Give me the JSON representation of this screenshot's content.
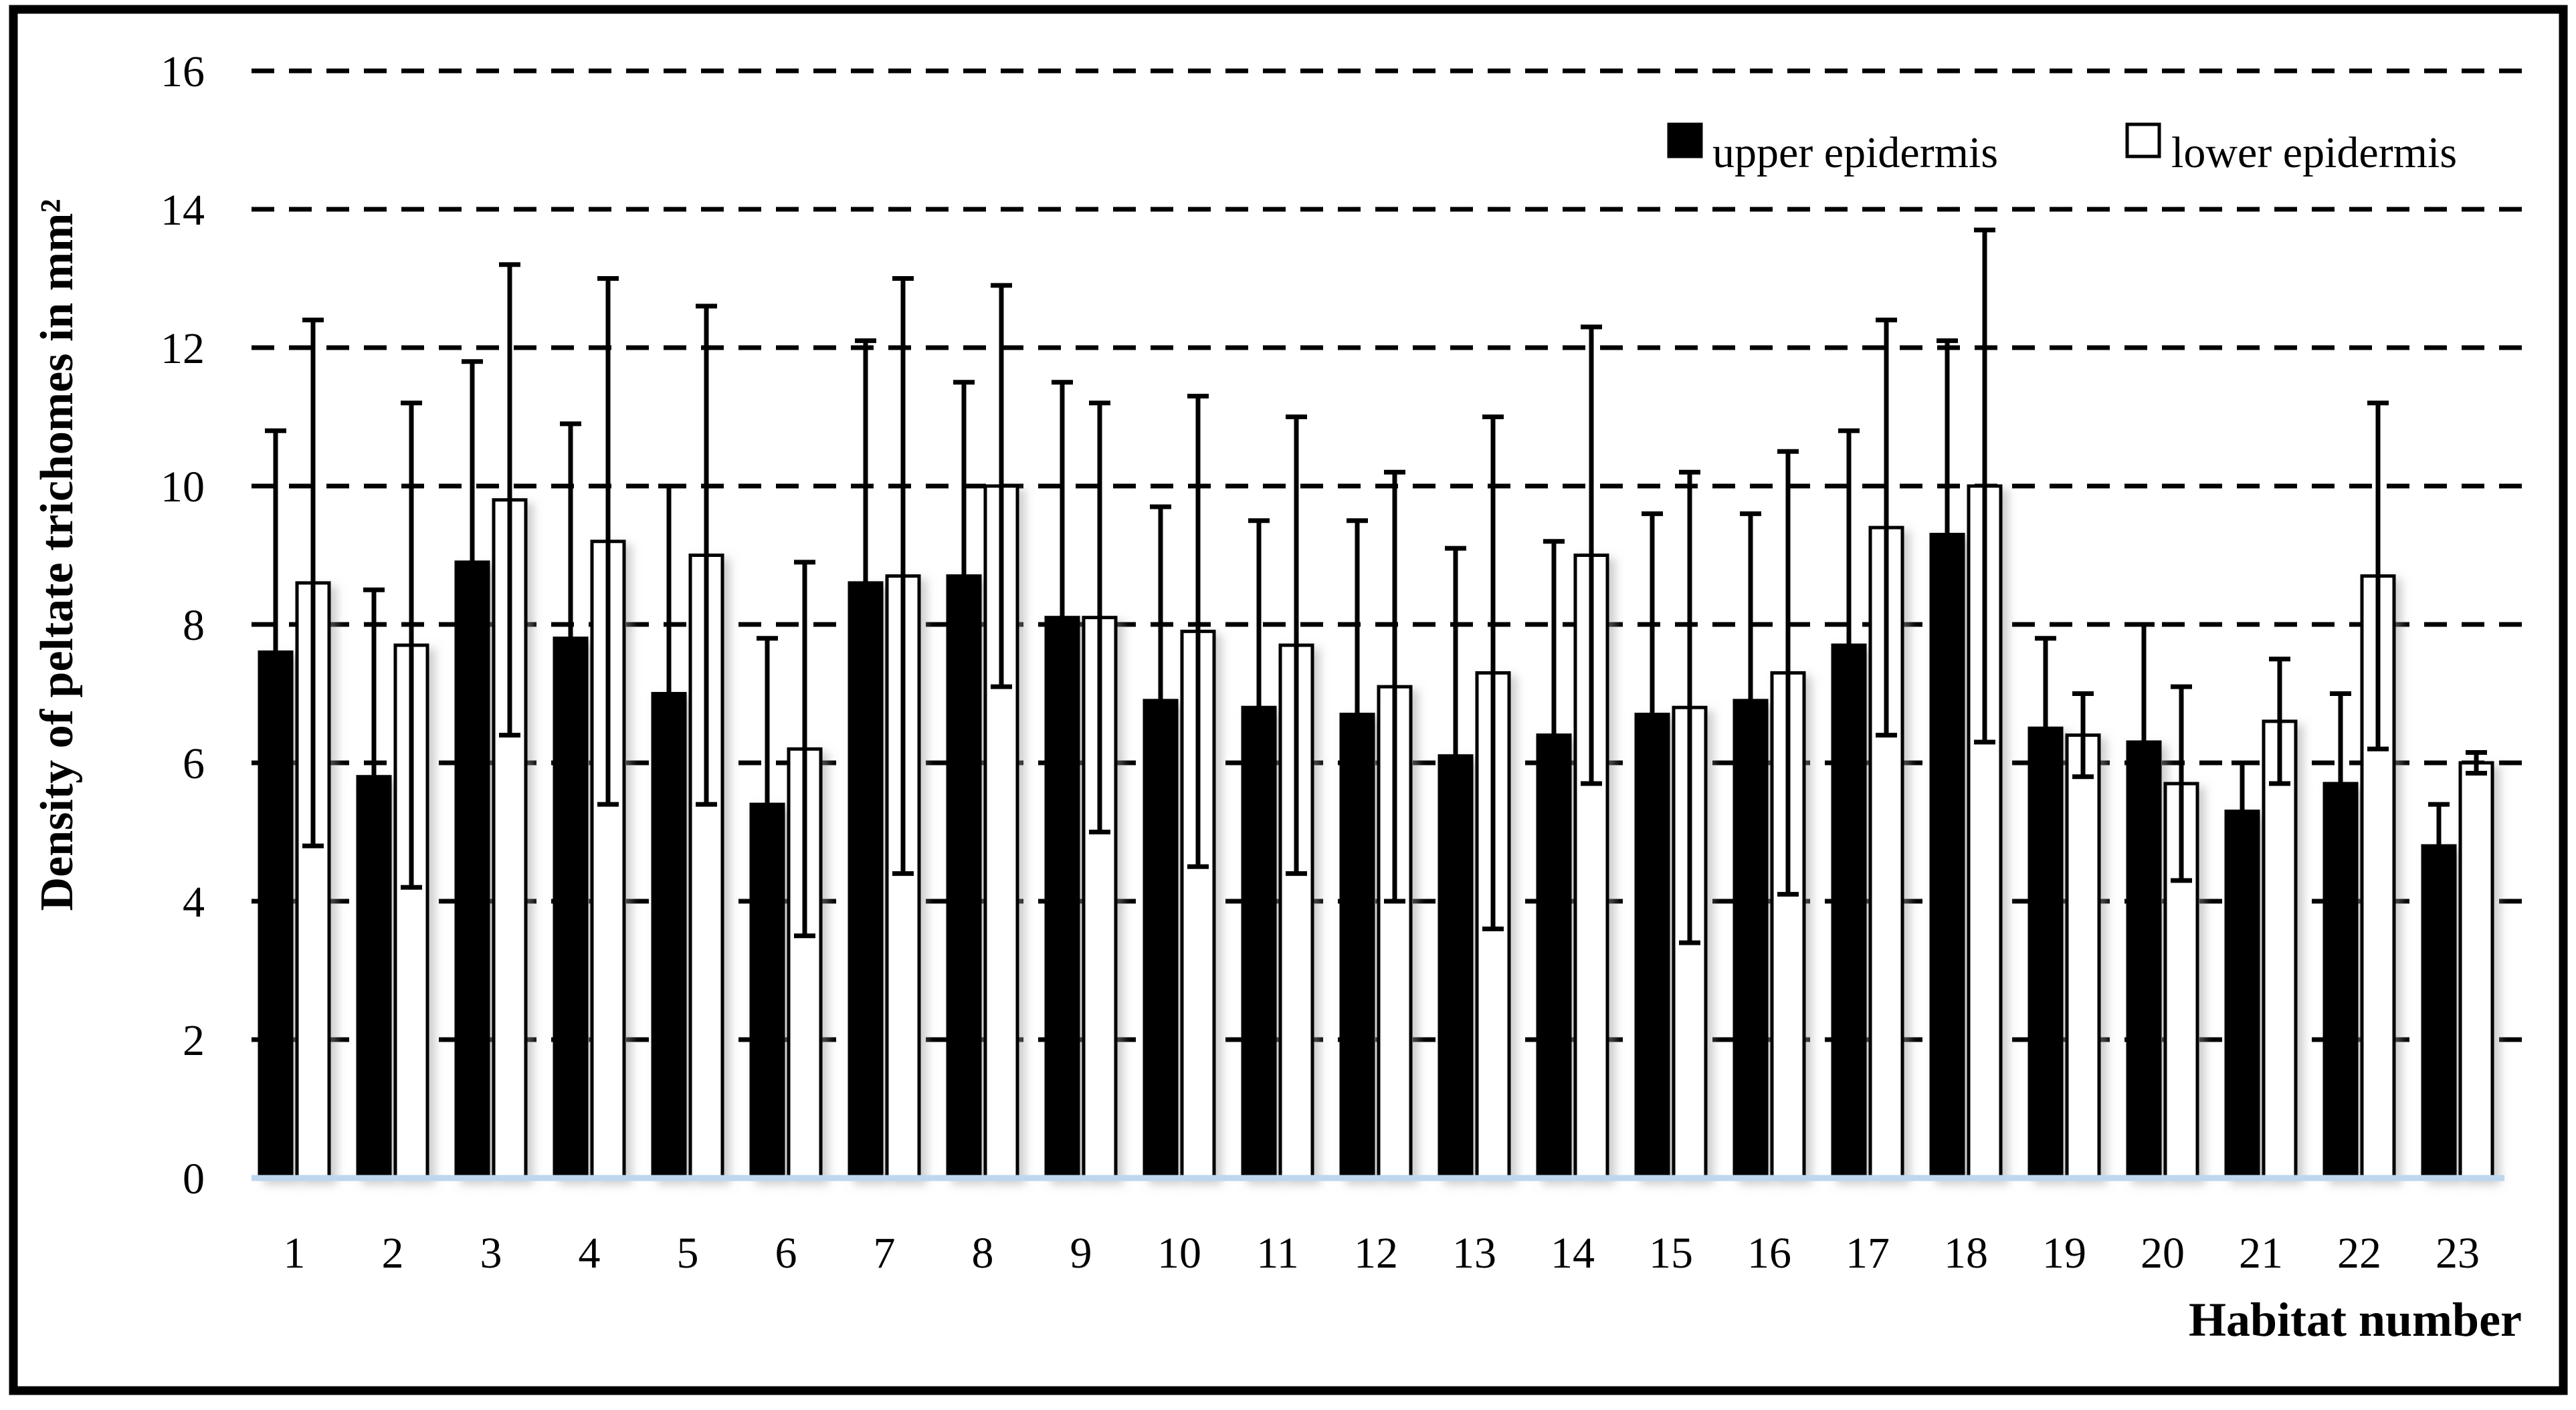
{
  "chart_data": {
    "type": "bar",
    "title": "",
    "xlabel": "Habitat number",
    "ylabel": "Density of peltate trichomes in mm²",
    "ylim": [
      0,
      16
    ],
    "yticks": [
      0,
      2,
      4,
      6,
      8,
      10,
      12,
      14,
      16
    ],
    "categories": [
      "1",
      "2",
      "3",
      "4",
      "5",
      "6",
      "7",
      "8",
      "9",
      "10",
      "11",
      "12",
      "13",
      "14",
      "15",
      "16",
      "17",
      "18",
      "19",
      "20",
      "21",
      "22",
      "23"
    ],
    "grid": "horizontal-dashed",
    "legend_position": "top-right-inside",
    "error_bars": "symmetric-with-caps",
    "colors": {
      "bar_upper_fill": "#000000",
      "bar_lower_fill": "#ffffff",
      "bar_stroke": "#000000",
      "gridline": "#000000",
      "baseline_axis": "#bdd7ee",
      "frame_border": "#000000",
      "text": "#000000"
    },
    "series": [
      {
        "key": "upper",
        "name": "upper epidermis",
        "fill": "#000000",
        "values": [
          7.6,
          5.8,
          8.9,
          7.8,
          7.0,
          5.4,
          8.6,
          8.7,
          8.1,
          6.9,
          6.8,
          6.7,
          6.1,
          6.4,
          6.7,
          6.9,
          7.7,
          9.3,
          6.5,
          6.3,
          5.3,
          5.7,
          4.8
        ],
        "errors": [
          3.2,
          2.7,
          2.9,
          3.1,
          3.0,
          2.4,
          3.5,
          2.8,
          3.4,
          2.8,
          2.7,
          2.8,
          3.0,
          2.8,
          2.9,
          2.7,
          3.1,
          2.8,
          1.3,
          1.7,
          0.7,
          1.3,
          0.6
        ]
      },
      {
        "key": "lower",
        "name": "lower epidermis",
        "fill": "#ffffff",
        "values": [
          8.6,
          7.7,
          9.8,
          9.2,
          9.0,
          6.2,
          8.7,
          10.0,
          8.1,
          7.9,
          7.7,
          7.1,
          7.3,
          9.0,
          6.8,
          7.3,
          9.4,
          10.0,
          6.4,
          5.7,
          6.6,
          8.7,
          6.0
        ],
        "errors": [
          3.8,
          3.5,
          3.4,
          3.8,
          3.6,
          2.7,
          4.3,
          2.9,
          3.1,
          3.4,
          3.3,
          3.1,
          3.7,
          3.3,
          3.4,
          3.2,
          3.0,
          3.7,
          0.6,
          1.4,
          0.9,
          2.5,
          0.15
        ]
      }
    ]
  }
}
